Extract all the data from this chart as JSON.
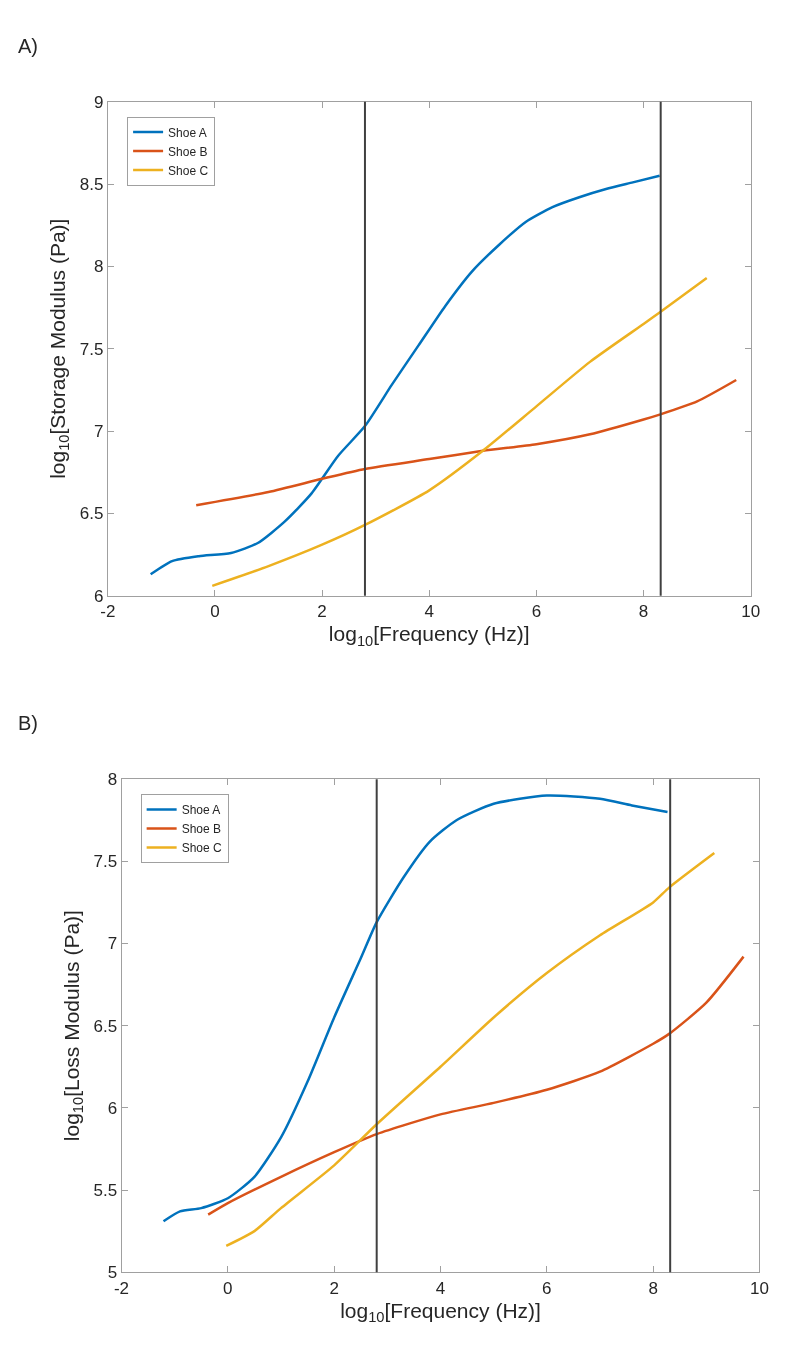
{
  "chart_data": [
    {
      "type": "line",
      "xlabel": "log$_{10}$[Frequency (Hz)]",
      "ylabel": "log$_{10}$[Storage Modulus (Pa)]",
      "annotations": [
        "A)"
      ],
      "xlim": [
        -2,
        10
      ],
      "xticks": [
        -2,
        0,
        2,
        4,
        6,
        8,
        10
      ],
      "ylim": [
        6,
        9
      ],
      "yticks": [
        6,
        6.5,
        7,
        7.5,
        8,
        8.5,
        9
      ],
      "legend": "top left",
      "line_style": "solid",
      "marker": "none",
      "ref_lines": [
        {
          "axis": "x",
          "value": 2.8,
          "color": "#404040"
        },
        {
          "axis": "x",
          "value": 8.32,
          "color": "#404040"
        }
      ],
      "series": [
        {
          "name": "Shoe A",
          "color": "#0072bd",
          "x": [
            -1.2,
            -0.8,
            -0.3,
            0.3,
            0.8,
            1.3,
            1.8,
            2.3,
            2.8,
            3.3,
            3.8,
            4.3,
            4.8,
            5.3,
            5.8,
            6.3,
            6.8,
            7.3,
            7.8,
            8.3
          ],
          "values": [
            6.13,
            6.21,
            6.24,
            6.26,
            6.32,
            6.45,
            6.62,
            6.85,
            7.03,
            7.28,
            7.52,
            7.76,
            7.97,
            8.13,
            8.27,
            8.36,
            8.42,
            8.47,
            8.51,
            8.55
          ]
        },
        {
          "name": "Shoe B",
          "color": "#d95319",
          "x": [
            -0.35,
            1,
            2,
            2.8,
            4,
            5,
            6,
            7,
            8,
            8.3,
            9,
            9.73
          ],
          "values": [
            6.55,
            6.63,
            6.71,
            6.77,
            6.83,
            6.88,
            6.92,
            6.98,
            7.07,
            7.1,
            7.18,
            7.31
          ]
        },
        {
          "name": "Shoe C",
          "color": "#edb120",
          "x": [
            -0.05,
            1,
            2,
            2.8,
            4,
            5,
            6,
            7,
            8,
            8.3,
            9.18
          ],
          "values": [
            6.06,
            6.18,
            6.31,
            6.43,
            6.64,
            6.88,
            7.15,
            7.42,
            7.65,
            7.72,
            7.93
          ]
        }
      ]
    },
    {
      "type": "line",
      "xlabel": "log$_{10}$[Frequency (Hz)]",
      "ylabel": "log$_{10}$[Loss Modulus (Pa)]",
      "annotations": [
        "B)"
      ],
      "xlim": [
        -2,
        10
      ],
      "xticks": [
        -2,
        0,
        2,
        4,
        6,
        8,
        10
      ],
      "ylim": [
        5,
        8
      ],
      "yticks": [
        5,
        5.5,
        6,
        6.5,
        7,
        7.5,
        8
      ],
      "legend": "top left",
      "line_style": "solid",
      "marker": "none",
      "ref_lines": [
        {
          "axis": "x",
          "value": 2.8,
          "color": "#404040"
        },
        {
          "axis": "x",
          "value": 8.32,
          "color": "#404040"
        }
      ],
      "series": [
        {
          "name": "Shoe A",
          "color": "#0072bd",
          "x": [
            -1.21,
            -0.9,
            -0.5,
            0,
            0.5,
            1,
            1.5,
            2,
            2.5,
            2.8,
            3.3,
            3.8,
            4.3,
            5,
            6,
            7,
            7.6,
            8.27
          ],
          "values": [
            5.31,
            5.37,
            5.39,
            5.45,
            5.58,
            5.82,
            6.16,
            6.55,
            6.91,
            7.13,
            7.4,
            7.62,
            7.75,
            7.85,
            7.9,
            7.88,
            7.84,
            7.8
          ]
        },
        {
          "name": "Shoe B",
          "color": "#d95319",
          "x": [
            -0.37,
            0,
            1,
            2,
            2.8,
            4,
            5,
            6,
            7,
            8,
            8.3,
            9,
            9.7
          ],
          "values": [
            5.35,
            5.42,
            5.58,
            5.73,
            5.84,
            5.96,
            6.03,
            6.11,
            6.22,
            6.39,
            6.45,
            6.64,
            6.92
          ]
        },
        {
          "name": "Shoe C",
          "color": "#edb120",
          "x": [
            -0.03,
            0.5,
            1,
            2,
            2.8,
            4,
            5,
            6,
            7,
            8,
            8.3,
            9.15
          ],
          "values": [
            5.16,
            5.25,
            5.39,
            5.65,
            5.9,
            6.25,
            6.55,
            6.82,
            7.05,
            7.25,
            7.34,
            7.55
          ]
        }
      ]
    }
  ]
}
